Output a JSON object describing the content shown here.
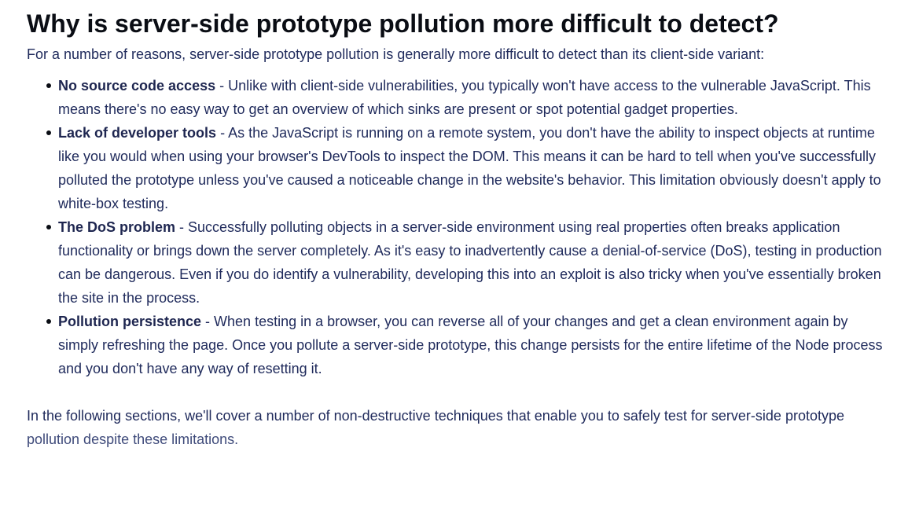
{
  "article": {
    "heading": "Why is server-side prototype pollution more difficult to detect?",
    "intro": "For a number of reasons, server-side prototype pollution is generally more difficult to detect than its client-side variant:",
    "points": [
      {
        "term": "No source code access",
        "text": " - Unlike with client-side vulnerabilities, you typically won't have access to the vulnerable JavaScript. This means there's no easy way to get an overview of which sinks are present or spot potential gadget properties."
      },
      {
        "term": "Lack of developer tools",
        "text": " - As the JavaScript is running on a remote system, you don't have the ability to inspect objects at runtime like you would when using your browser's DevTools to inspect the DOM. This means it can be hard to tell when you've successfully polluted the prototype unless you've caused a noticeable change in the website's behavior. This limitation obviously doesn't apply to white-box testing."
      },
      {
        "term": "The DoS problem",
        "text": " - Successfully polluting objects in a server-side environment using real properties often breaks application functionality or brings down the server completely. As it's easy to inadvertently cause a denial-of-service (DoS), testing in production can be dangerous. Even if you do identify a vulnerability, developing this into an exploit is also tricky when you've essentially broken the site in the process."
      },
      {
        "term": "Pollution persistence",
        "text": " - When testing in a browser, you can reverse all of your changes and get a clean environment again by simply refreshing the page. Once you pollute a server-side prototype, this change persists for the entire lifetime of the Node process and you don't have any way of resetting it."
      }
    ],
    "closing": "In the following sections, we'll cover a number of non-destructive techniques that enable you to safely test for server-side prototype ",
    "closing_end": "pollution despite these limitations."
  },
  "colors": {
    "heading": "#0a0d14",
    "body_text": "#202b5c",
    "background": "#ffffff"
  }
}
